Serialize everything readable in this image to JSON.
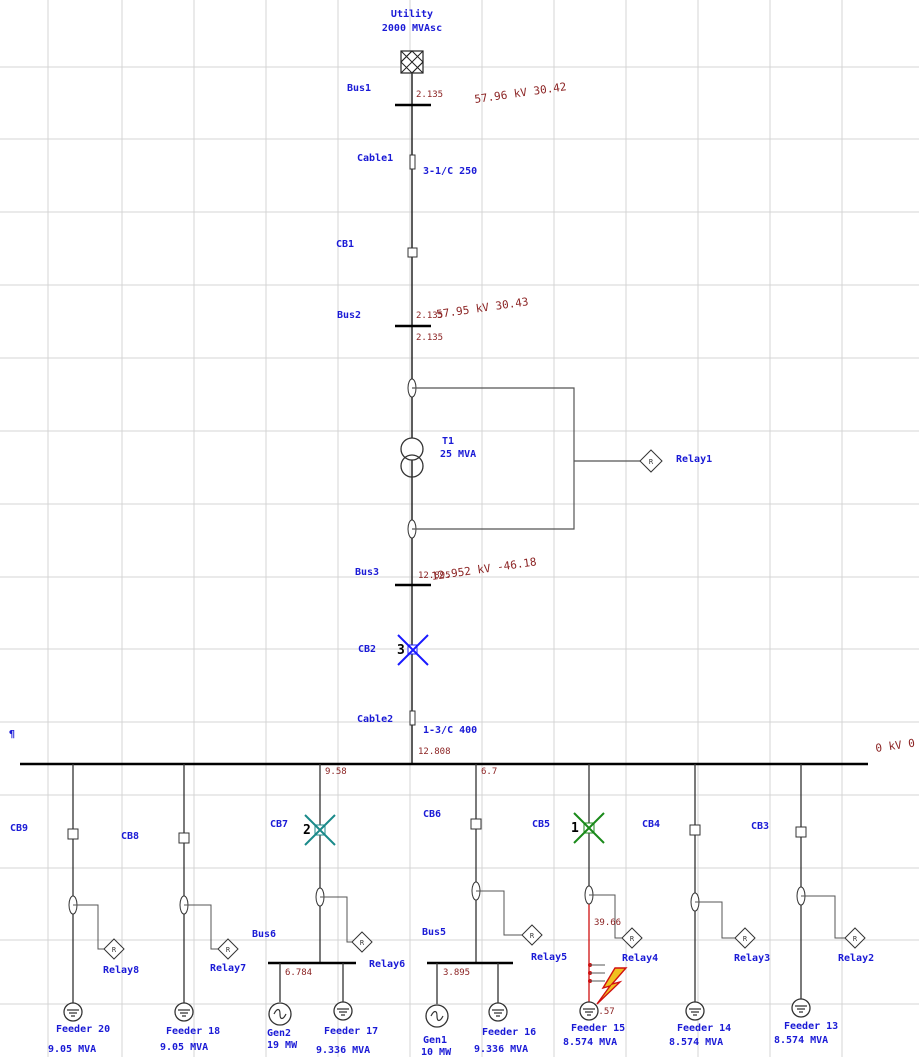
{
  "source": {
    "name": "Utility",
    "rating": "2000 MVAsc"
  },
  "buses": {
    "bus1": {
      "name": "Bus1",
      "voltage": "57.96 kV 30.42",
      "current": "2.135"
    },
    "bus2": {
      "name": "Bus2",
      "voltage": "57.95 kV 30.43",
      "current_in": "2.135",
      "current_out": "2.135"
    },
    "bus3": {
      "name": "Bus3",
      "voltage": "12.952 kV -46.18",
      "current": "12.895"
    },
    "main_bus": {
      "voltage_fragment": "0 kV 0",
      "left_mark": "¶",
      "current_in": "12.808"
    },
    "bus5": {
      "name": "Bus5",
      "current": "3.895"
    },
    "bus6": {
      "name": "Bus6",
      "current": "6.784"
    }
  },
  "cables": {
    "cable1": {
      "name": "Cable1",
      "spec": "3-1/C 250"
    },
    "cable2": {
      "name": "Cable2",
      "spec": "1-3/C 400"
    }
  },
  "transformer": {
    "name": "T1",
    "rating": "25 MVA"
  },
  "breakers": {
    "cb1": "CB1",
    "cb2": "CB2",
    "cb3": "CB3",
    "cb4": "CB4",
    "cb5": "CB5",
    "cb6": "CB6",
    "cb7": "CB7",
    "cb8": "CB8",
    "cb9": "CB9"
  },
  "trip_sequence": {
    "cb2": "3",
    "cb7": "2",
    "cb5": "1"
  },
  "relays": {
    "relay1": "Relay1",
    "relay2": "Relay2",
    "relay3": "Relay3",
    "relay4": "Relay4",
    "relay5": "Relay5",
    "relay6": "Relay6",
    "relay7": "Relay7",
    "relay8": "Relay8",
    "symbol": "R"
  },
  "branch_currents": {
    "cb7_branch": "9.58",
    "cb6_branch": "6.7",
    "feeder15_fault": "39.66",
    "feeder15_load": "2.57"
  },
  "feeders": [
    {
      "name": "Feeder 20",
      "rating": "9.05 MVA"
    },
    {
      "name": "Feeder 18",
      "rating": "9.05 MVA"
    },
    {
      "name": "Feeder 17",
      "rating": "9.336 MVA"
    },
    {
      "name": "Feeder 16",
      "rating": "9.336 MVA"
    },
    {
      "name": "Feeder 15",
      "rating": "8.574 MVA"
    },
    {
      "name": "Feeder 14",
      "rating": "8.574 MVA"
    },
    {
      "name": "Feeder 13",
      "rating": "8.574 MVA"
    }
  ],
  "generators": [
    {
      "name": "Gen2",
      "rating": "19 MW"
    },
    {
      "name": "Gen1",
      "rating": "10 MW"
    }
  ],
  "colors": {
    "label_blue": "#1a1ad6",
    "value_red": "#8b2323",
    "tripped_blue": "#1a1aff",
    "tripped_teal": "#1a8a8a",
    "tripped_green": "#1a8a1a",
    "fault_red": "#d01010",
    "grid": "#d4d4d4"
  }
}
